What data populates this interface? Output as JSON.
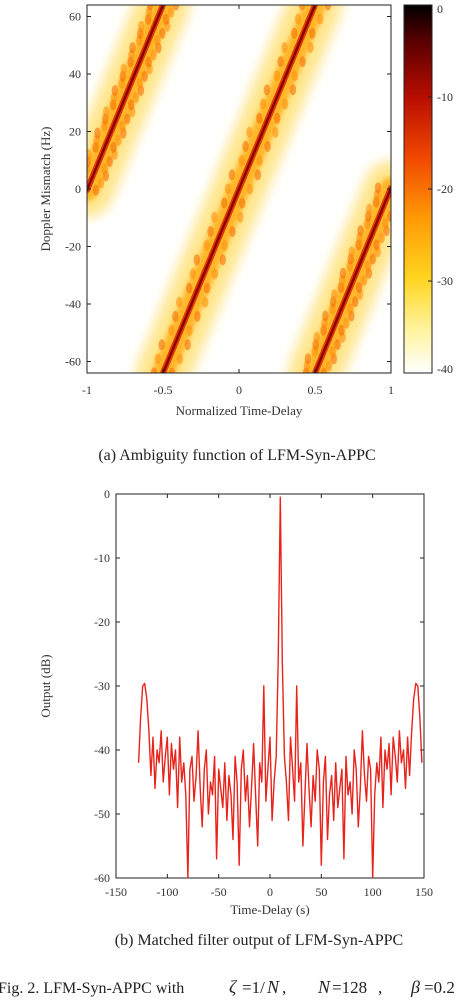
{
  "chart_data": [
    {
      "type": "heatmap",
      "title": "",
      "xlabel": "Normalized Time-Delay",
      "ylabel": "Doppler Mismatch (Hz)",
      "xlim": [
        -1,
        1
      ],
      "ylim": [
        -64,
        64
      ],
      "x_ticks": [
        "-1",
        "-0.5",
        "0",
        "0.5",
        "1"
      ],
      "y_ticks": [
        "60",
        "40",
        "20",
        "0",
        "-20",
        "-40",
        "-60"
      ],
      "colorbar_ticks": [
        "0",
        "-10",
        "-20",
        "-30",
        "-40"
      ],
      "colorbar_range": [
        -40,
        0
      ],
      "colormap": [
        "#ffffff",
        "#fff3a6",
        "#ffd21e",
        "#ff8a00",
        "#e81d00",
        "#8a0000",
        "#000000"
      ],
      "ridges": [
        {
          "x": [
            -1,
            -0.5
          ],
          "y": [
            -0.4,
            64
          ]
        },
        {
          "x": [
            -0.5,
            0.5
          ],
          "y": [
            -64,
            64
          ]
        },
        {
          "x": [
            0.5,
            1
          ],
          "y": [
            -64,
            0.4
          ]
        }
      ],
      "caption": "(a) Ambiguity function of LFM-Syn-APPC"
    },
    {
      "type": "line",
      "title": "",
      "xlabel": "Time-Delay (s)",
      "ylabel": "Output (dB)",
      "xlim": [
        -150,
        150
      ],
      "ylim": [
        -60,
        0
      ],
      "x_ticks": [
        "-150",
        "-100",
        "-50",
        "0",
        "50",
        "100",
        "150"
      ],
      "y_ticks": [
        "0",
        "-10",
        "-20",
        "-30",
        "-40",
        "-50",
        "-60"
      ],
      "line_color": "#e8231b",
      "series": [
        {
          "name": "",
          "x_start": -128,
          "x_step": 2,
          "values": [
            -42,
            -35,
            -30,
            -29.6,
            -32,
            -37,
            -44,
            -38,
            -46,
            -40,
            -42,
            -37,
            -45,
            -41,
            -38,
            -47,
            -39,
            -43,
            -40,
            -49,
            -38,
            -45,
            -42,
            -47,
            -60,
            -43,
            -41,
            -48,
            -44,
            -37,
            -46,
            -52,
            -43,
            -40,
            -50,
            -45,
            -47,
            -41,
            -57,
            -43,
            -46,
            -49,
            -42,
            -51,
            -44,
            -47,
            -54,
            -41,
            -45,
            -58,
            -43,
            -40,
            -48,
            -44,
            -52,
            -46,
            -39,
            -47,
            -55,
            -42,
            -45,
            -30,
            -48,
            -43,
            -38,
            -51,
            -45,
            -41,
            -26,
            -0.5,
            -26,
            -41,
            -45,
            -51,
            -38,
            -43,
            -48,
            -30,
            -45,
            -42,
            -55,
            -47,
            -39,
            -46,
            -52,
            -44,
            -48,
            -40,
            -43,
            -58,
            -45,
            -41,
            -54,
            -47,
            -44,
            -51,
            -42,
            -49,
            -46,
            -43,
            -57,
            -41,
            -47,
            -45,
            -50,
            -40,
            -43,
            -52,
            -46,
            -37,
            -44,
            -48,
            -41,
            -43,
            -60,
            -47,
            -42,
            -45,
            -38,
            -49,
            -40,
            -43,
            -39,
            -47,
            -38,
            -41,
            -45,
            -37,
            -42,
            -40,
            -46,
            -38,
            -44,
            -37,
            -32,
            -29.6,
            -30,
            -35,
            -42
          ]
        }
      ],
      "caption": "(b) Matched filter output of LFM-Syn-APPC"
    }
  ],
  "figure_caption": {
    "prefix": "Fig. 2. LFM-Syn-APPC with",
    "zeta_sym": "ζ",
    "zeta_val": "=1/",
    "zeta_N": "N",
    "sep1": ",",
    "N_sym": "N",
    "N_val": "=128",
    "sep2": ",",
    "beta_sym": "β",
    "beta_val": "=0.2"
  }
}
